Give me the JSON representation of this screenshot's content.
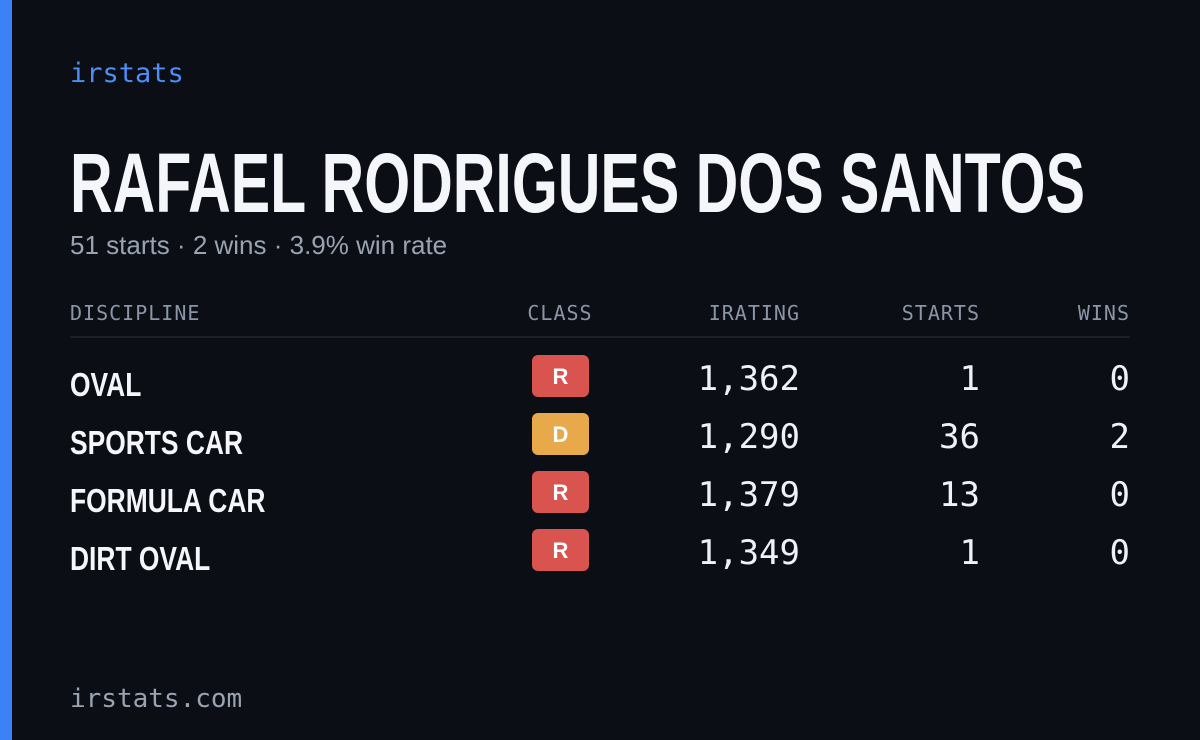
{
  "brand": "irstats",
  "driver": {
    "name": "RAFAEL RODRIGUES DOS SANTOS",
    "summary": "51 starts · 2 wins · 3.9% win rate"
  },
  "table": {
    "columns": [
      "DISCIPLINE",
      "CLASS",
      "IRATING",
      "STARTS",
      "WINS"
    ],
    "rows": [
      {
        "discipline": "OVAL",
        "class": "R",
        "class_color": "#d9534f",
        "irating": "1,362",
        "starts": "1",
        "wins": "0"
      },
      {
        "discipline": "SPORTS CAR",
        "class": "D",
        "class_color": "#e8a94a",
        "irating": "1,290",
        "starts": "36",
        "wins": "2"
      },
      {
        "discipline": "FORMULA CAR",
        "class": "R",
        "class_color": "#d9534f",
        "irating": "1,379",
        "starts": "13",
        "wins": "0"
      },
      {
        "discipline": "DIRT OVAL",
        "class": "R",
        "class_color": "#d9534f",
        "irating": "1,349",
        "starts": "1",
        "wins": "0"
      }
    ]
  },
  "footer": "irstats.com"
}
